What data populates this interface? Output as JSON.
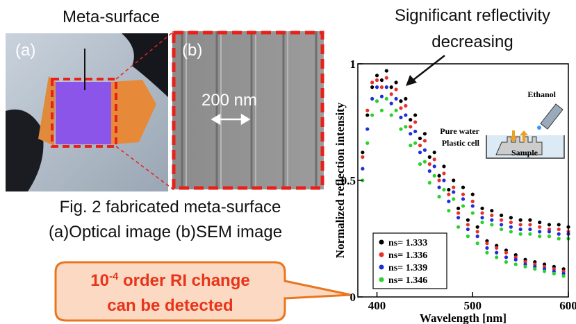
{
  "labels": {
    "meta_surface": "Meta-surface",
    "a": "(a)",
    "b": "(b)",
    "scale": "200 nm"
  },
  "caption": [
    "Fig. 2 fabricated meta-surface",
    "(a)Optical image (b)SEM image"
  ],
  "callout": {
    "base": "10",
    "exponent": "-4",
    "rest": " order RI change",
    "line2": "can be detected"
  },
  "annotation": [
    "Significant reflectivity",
    "decreasing"
  ],
  "inset": {
    "ethanol": "Ethanol",
    "water": "Pure water",
    "cell": "Plastic cell",
    "sample": "Sample"
  },
  "chart_data": {
    "type": "scatter",
    "xlabel": "Wavelength [nm]",
    "ylabel": "Normalized reflection intensity",
    "x": [
      385,
      390,
      395,
      400,
      405,
      410,
      415,
      420,
      425,
      430,
      435,
      440,
      445,
      450,
      455,
      460,
      465,
      470,
      475,
      480,
      485,
      490,
      495,
      500,
      505,
      510,
      515,
      520,
      525,
      530,
      535,
      540,
      545,
      550,
      555,
      560,
      565,
      570,
      575,
      580,
      585,
      590,
      595,
      600
    ],
    "series": [
      {
        "name": "ns= 1.333",
        "color": "#000000",
        "values": [
          0.62,
          0.78,
          0.9,
          0.95,
          0.93,
          0.97,
          0.9,
          0.92,
          0.84,
          0.85,
          0.76,
          0.78,
          0.68,
          0.7,
          0.6,
          0.62,
          0.52,
          0.56,
          0.46,
          0.5,
          0.38,
          0.47,
          0.33,
          0.44,
          0.3,
          0.38,
          0.24,
          0.37,
          0.22,
          0.35,
          0.2,
          0.34,
          0.18,
          0.33,
          0.16,
          0.33,
          0.15,
          0.32,
          0.14,
          0.31,
          0.13,
          0.31,
          0.12,
          0.3
        ]
      },
      {
        "name": "ns= 1.336",
        "color": "#e8302a",
        "values": [
          0.6,
          0.8,
          0.92,
          0.93,
          0.9,
          0.94,
          0.87,
          0.89,
          0.81,
          0.82,
          0.73,
          0.75,
          0.65,
          0.67,
          0.57,
          0.59,
          0.5,
          0.53,
          0.44,
          0.47,
          0.36,
          0.44,
          0.31,
          0.41,
          0.28,
          0.36,
          0.23,
          0.35,
          0.21,
          0.33,
          0.19,
          0.32,
          0.17,
          0.31,
          0.15,
          0.31,
          0.14,
          0.3,
          0.13,
          0.29,
          0.12,
          0.29,
          0.11,
          0.28
        ]
      },
      {
        "name": "ns= 1.339",
        "color": "#1f2fd6",
        "values": [
          0.55,
          0.72,
          0.85,
          0.9,
          0.86,
          0.9,
          0.83,
          0.85,
          0.77,
          0.78,
          0.7,
          0.71,
          0.62,
          0.63,
          0.54,
          0.56,
          0.47,
          0.5,
          0.41,
          0.45,
          0.34,
          0.42,
          0.29,
          0.39,
          0.26,
          0.34,
          0.21,
          0.33,
          0.19,
          0.31,
          0.17,
          0.3,
          0.16,
          0.29,
          0.14,
          0.29,
          0.13,
          0.28,
          0.12,
          0.28,
          0.11,
          0.27,
          0.1,
          0.27
        ]
      },
      {
        "name": "ns= 1.346",
        "color": "#2bd12b",
        "values": [
          0.5,
          0.66,
          0.78,
          0.84,
          0.8,
          0.85,
          0.78,
          0.8,
          0.72,
          0.73,
          0.65,
          0.66,
          0.57,
          0.58,
          0.49,
          0.52,
          0.43,
          0.46,
          0.37,
          0.42,
          0.3,
          0.39,
          0.26,
          0.36,
          0.23,
          0.32,
          0.19,
          0.31,
          0.17,
          0.29,
          0.15,
          0.28,
          0.14,
          0.27,
          0.13,
          0.27,
          0.12,
          0.26,
          0.11,
          0.26,
          0.1,
          0.25,
          0.09,
          0.25
        ]
      }
    ],
    "xlim": [
      380,
      600
    ],
    "ylim": [
      0,
      1
    ],
    "xticks": [
      400,
      500,
      600
    ],
    "yticks": [
      0,
      0.5,
      1
    ],
    "legend": "lower left"
  }
}
